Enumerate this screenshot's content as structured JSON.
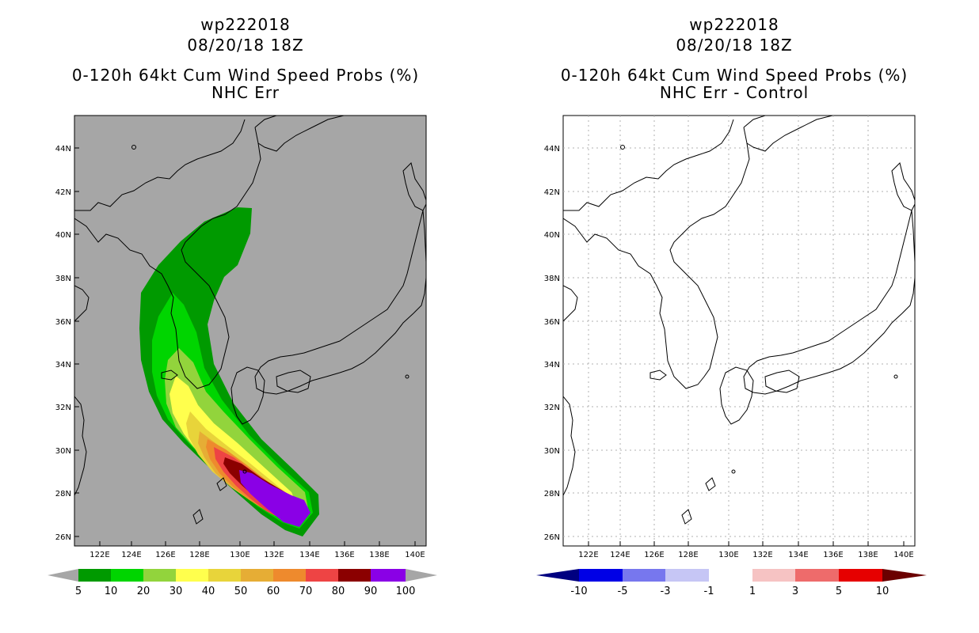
{
  "panels": [
    {
      "line1": "wp222018",
      "line2": "08/20/18 18Z",
      "line3": "0-120h 64kt Cum Wind Speed Probs (%)",
      "line4": "NHC Err",
      "background": "#a6a6a6"
    },
    {
      "line1": "wp222018",
      "line2": "08/20/18 18Z",
      "line3": "0-120h 64kt Cum Wind Speed Probs (%)",
      "line4": "NHC Err - Control",
      "background": "#ffffff"
    }
  ],
  "axes": {
    "lon_labels": [
      "122E",
      "124E",
      "126E",
      "128E",
      "130E",
      "132E",
      "134E",
      "136E",
      "138E",
      "140E"
    ],
    "lat_labels": [
      "26N",
      "28N",
      "30N",
      "32N",
      "34N",
      "36N",
      "38N",
      "40N",
      "42N",
      "44N"
    ]
  },
  "colorbar_left": {
    "labels": [
      "5",
      "10",
      "20",
      "30",
      "40",
      "50",
      "60",
      "70",
      "80",
      "90",
      "100"
    ],
    "colors": [
      "#009a00",
      "#00d500",
      "#92d43c",
      "#ffff4d",
      "#e8d43a",
      "#e6ad35",
      "#ee8a2d",
      "#ee4444",
      "#8b0000",
      "#8a00e6"
    ],
    "end_color": "#a6a6a6"
  },
  "colorbar_right": {
    "labels": [
      "-10",
      "-5",
      "-3",
      "-1",
      "1",
      "3",
      "5",
      "10"
    ],
    "colors": [
      "#0000e6",
      "#7777ee",
      "#c6c6f5",
      "#ffffff",
      "#f6c3c3",
      "#ee6b6b",
      "#e60000"
    ],
    "low_color": "#000080",
    "high_color": "#6b0000"
  }
}
